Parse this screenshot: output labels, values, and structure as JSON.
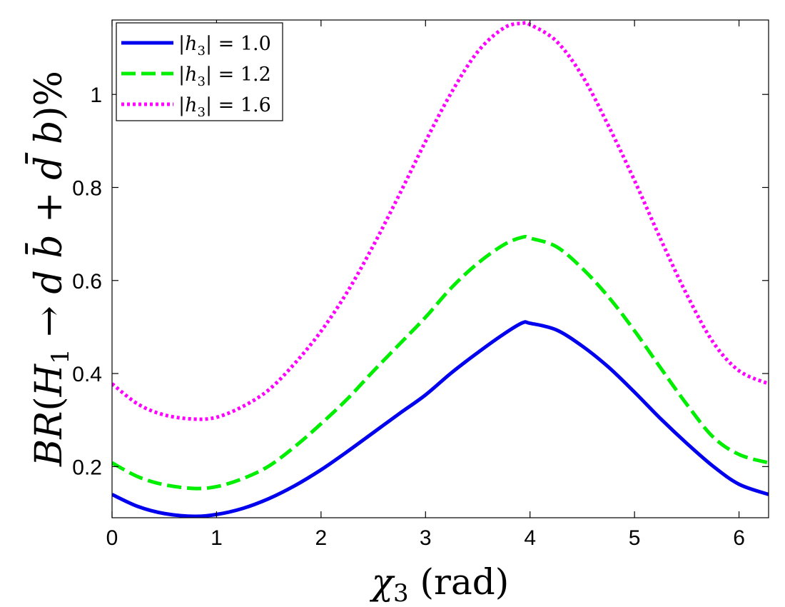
{
  "chart_data": {
    "type": "line",
    "xlabel": "χ3 (rad)",
    "ylabel": "BR(H1 → d b̄ + d̄ b)%",
    "xlim": [
      0,
      6.283
    ],
    "ylim": [
      0.09,
      1.16
    ],
    "xticks": [
      0,
      1,
      2,
      3,
      4,
      5,
      6
    ],
    "xtick_labels": [
      "0",
      "1",
      "2",
      "3",
      "4",
      "5",
      "6"
    ],
    "yticks": [
      0.2,
      0.4,
      0.6,
      0.8,
      1.0
    ],
    "ytick_labels": [
      "0.2",
      "0.4",
      "0.6",
      "0.8",
      "1"
    ],
    "grid": false,
    "legend_position": "top-left",
    "x": [
      0.0,
      0.25,
      0.5,
      0.785,
      1.0,
      1.25,
      1.5,
      1.75,
      2.0,
      2.25,
      2.5,
      2.75,
      3.0,
      3.25,
      3.5,
      3.75,
      3.927,
      4.0,
      4.25,
      4.5,
      4.75,
      5.0,
      5.25,
      5.5,
      5.75,
      6.0,
      6.283
    ],
    "series": [
      {
        "name": "|h3| = 1.0",
        "color": "#0000ee",
        "line_style": "solid",
        "values": [
          0.14,
          0.114,
          0.099,
          0.093,
          0.097,
          0.11,
          0.131,
          0.159,
          0.193,
          0.232,
          0.273,
          0.314,
          0.354,
          0.402,
          0.445,
          0.485,
          0.509,
          0.508,
          0.494,
          0.459,
          0.414,
          0.36,
          0.303,
          0.25,
          0.201,
          0.162,
          0.14
        ]
      },
      {
        "name": "|h3| = 1.2",
        "color": "#00ee00",
        "line_style": "dashed",
        "values": [
          0.208,
          0.178,
          0.161,
          0.153,
          0.157,
          0.174,
          0.201,
          0.243,
          0.292,
          0.345,
          0.405,
          0.463,
          0.521,
          0.585,
          0.637,
          0.677,
          0.693,
          0.691,
          0.673,
          0.626,
          0.565,
          0.492,
          0.412,
          0.334,
          0.264,
          0.226,
          0.208
        ]
      },
      {
        "name": "|h3| = 1.6",
        "color": "#ff00ff",
        "line_style": "dotted",
        "values": [
          0.378,
          0.334,
          0.311,
          0.302,
          0.306,
          0.329,
          0.365,
          0.422,
          0.491,
          0.575,
          0.675,
          0.785,
          0.899,
          1.005,
          1.092,
          1.143,
          1.153,
          1.15,
          1.115,
          1.04,
          0.933,
          0.815,
          0.689,
          0.57,
          0.468,
          0.406,
          0.378
        ]
      }
    ]
  }
}
